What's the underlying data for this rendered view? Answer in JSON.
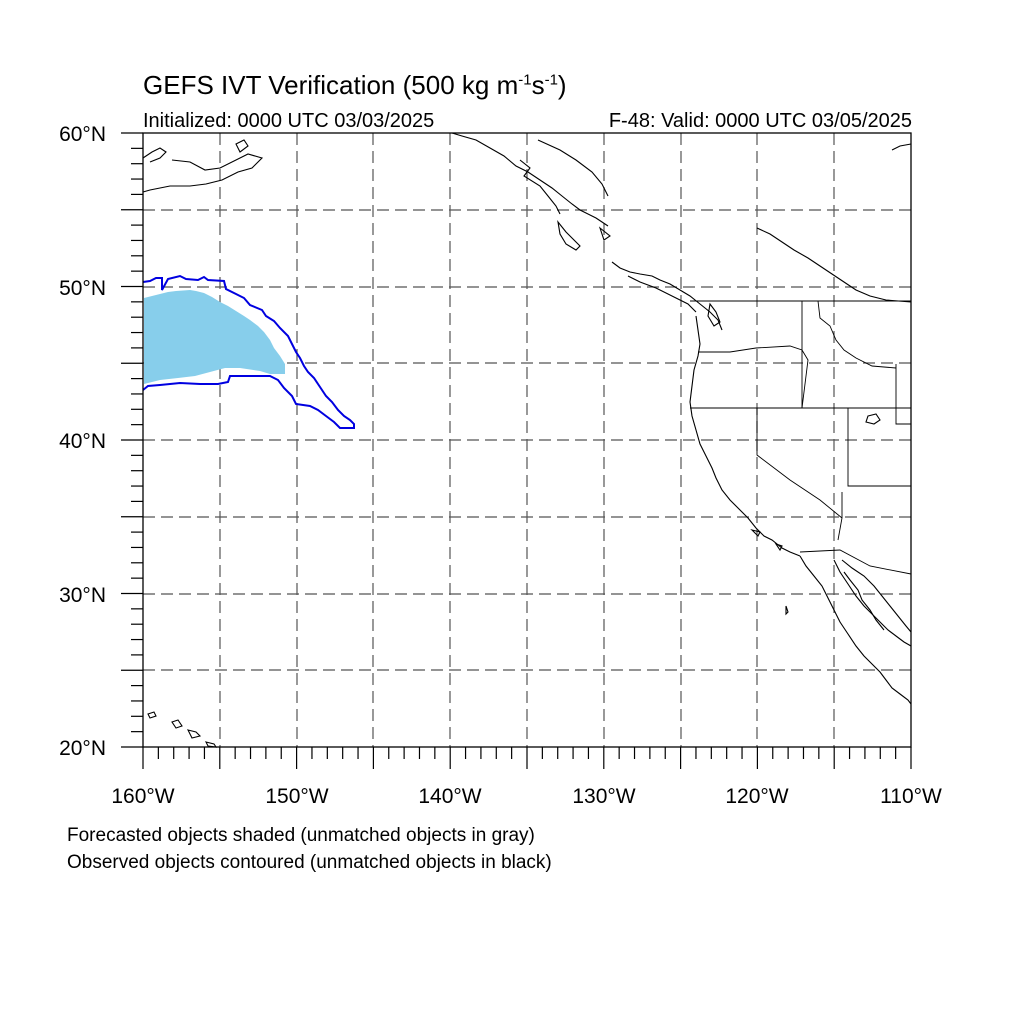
{
  "title": {
    "prefix": "GEFS IVT Verification (500 kg m",
    "exp1": "-1",
    "mid": "s",
    "exp2": "-1",
    "suffix": ")"
  },
  "initialized": "Initialized: 0000 UTC 03/03/2025",
  "valid": "F-48: Valid: 0000 UTC 03/05/2025",
  "lat_labels": [
    "60°N",
    "50°N",
    "40°N",
    "30°N",
    "20°N"
  ],
  "lon_labels": [
    "160°W",
    "150°W",
    "140°W",
    "130°W",
    "120°W",
    "110°W"
  ],
  "footer": {
    "line1": "Forecasted objects shaded (unmatched objects in gray)",
    "line2": "Observed objects contoured (unmatched objects in black)"
  },
  "colors": {
    "forecast_fill": "#87ceeb",
    "observed_contour": "#0000e0",
    "coastline": "#000000",
    "grid": "#555555"
  }
}
